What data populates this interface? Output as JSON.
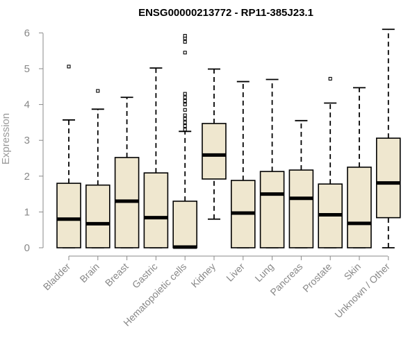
{
  "chart_data": {
    "type": "boxplot",
    "title": "ENSG00000213772 - RP11-385J23.1",
    "ylabel": "Expression",
    "xlabel": "",
    "ylim": [
      0,
      6.2
    ],
    "yticks": [
      0,
      1,
      2,
      3,
      4,
      5,
      6
    ],
    "grid": false,
    "colors": {
      "box_fill": "#efe7cf",
      "box_stroke": "#000000",
      "axis": "#888888"
    },
    "categories": [
      "Bladder",
      "Brain",
      "Breast",
      "Gastric",
      "Hematopoietic cells",
      "Kidney",
      "Liver",
      "Lung",
      "Pancreas",
      "Prostate",
      "Skin",
      "Unknown / Other"
    ],
    "boxes": [
      {
        "min": 0.0,
        "q1": 0.0,
        "median": 0.8,
        "q3": 1.8,
        "max": 3.57,
        "outliers": [
          5.06
        ]
      },
      {
        "min": 0.0,
        "q1": 0.0,
        "median": 0.67,
        "q3": 1.75,
        "max": 3.87,
        "outliers": [
          4.38
        ]
      },
      {
        "min": 0.0,
        "q1": 0.0,
        "median": 1.3,
        "q3": 2.52,
        "max": 4.2,
        "outliers": []
      },
      {
        "min": 0.0,
        "q1": 0.0,
        "median": 0.84,
        "q3": 2.09,
        "max": 5.02,
        "outliers": []
      },
      {
        "min": 0.0,
        "q1": 0.0,
        "median": 0.02,
        "q3": 1.3,
        "max": 3.25,
        "outliers": [
          3.3,
          3.4,
          3.5,
          3.6,
          3.7,
          3.85,
          4.0,
          4.1,
          4.2,
          4.3,
          5.45,
          5.75,
          5.85,
          5.92
        ]
      },
      {
        "min": 0.8,
        "q1": 1.92,
        "median": 2.59,
        "q3": 3.47,
        "max": 4.99,
        "outliers": []
      },
      {
        "min": 0.0,
        "q1": 0.0,
        "median": 0.97,
        "q3": 1.88,
        "max": 4.64,
        "outliers": []
      },
      {
        "min": 0.0,
        "q1": 0.0,
        "median": 1.5,
        "q3": 2.13,
        "max": 4.7,
        "outliers": []
      },
      {
        "min": 0.0,
        "q1": 0.0,
        "median": 1.38,
        "q3": 2.17,
        "max": 3.55,
        "outliers": []
      },
      {
        "min": 0.0,
        "q1": 0.0,
        "median": 0.92,
        "q3": 1.78,
        "max": 4.04,
        "outliers": [
          4.72
        ]
      },
      {
        "min": 0.0,
        "q1": 0.0,
        "median": 0.68,
        "q3": 2.25,
        "max": 4.47,
        "outliers": []
      },
      {
        "min": 0.0,
        "q1": 0.84,
        "median": 1.81,
        "q3": 3.06,
        "max": 6.1,
        "outliers": []
      }
    ]
  }
}
